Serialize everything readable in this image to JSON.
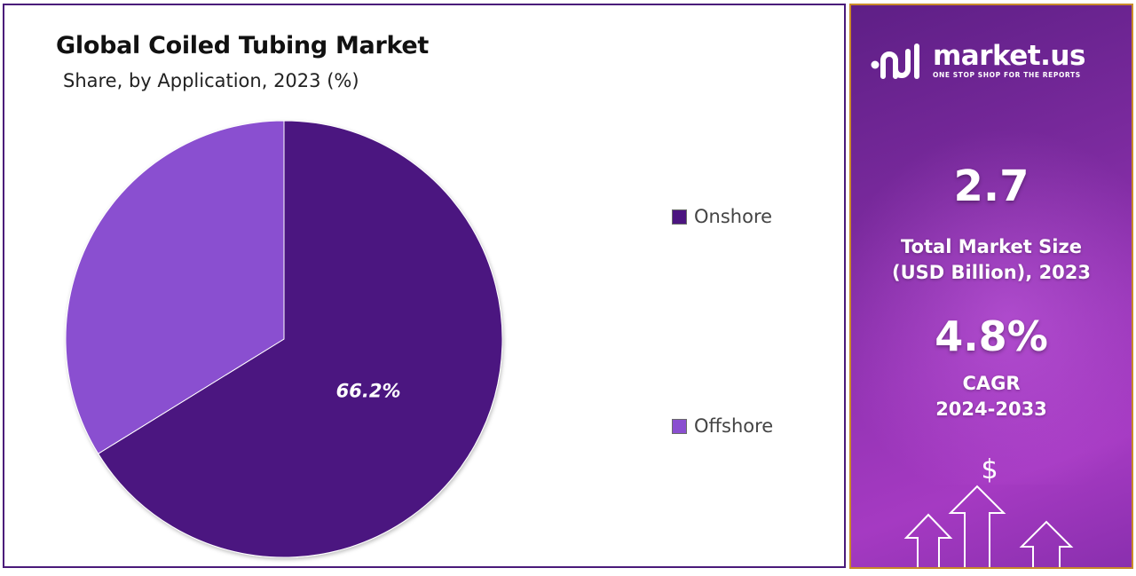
{
  "chart_data": {
    "type": "pie",
    "title": "Global Coiled Tubing Market",
    "subtitle": "Share, by Application, 2023 (%)",
    "slices": [
      {
        "name": "Onshore",
        "value": 66.2,
        "label": "66.2%",
        "color": "#4c1580"
      },
      {
        "name": "Offshore",
        "value": 33.8,
        "label": "",
        "color": "#8a4fd0"
      }
    ],
    "legend_position": "right"
  },
  "sidebar": {
    "brand": "market.us",
    "tagline": "ONE STOP SHOP FOR THE REPORTS",
    "market_size_value": "2.7",
    "market_size_label_line1": "Total Market Size",
    "market_size_label_line2": "(USD Billion), 2023",
    "cagr_value": "4.8%",
    "cagr_label_line1": "CAGR",
    "cagr_label_line2": "2024-2033",
    "currency_symbol": "$",
    "accent_color": "#9534b5",
    "border_color": "#c9892a"
  }
}
